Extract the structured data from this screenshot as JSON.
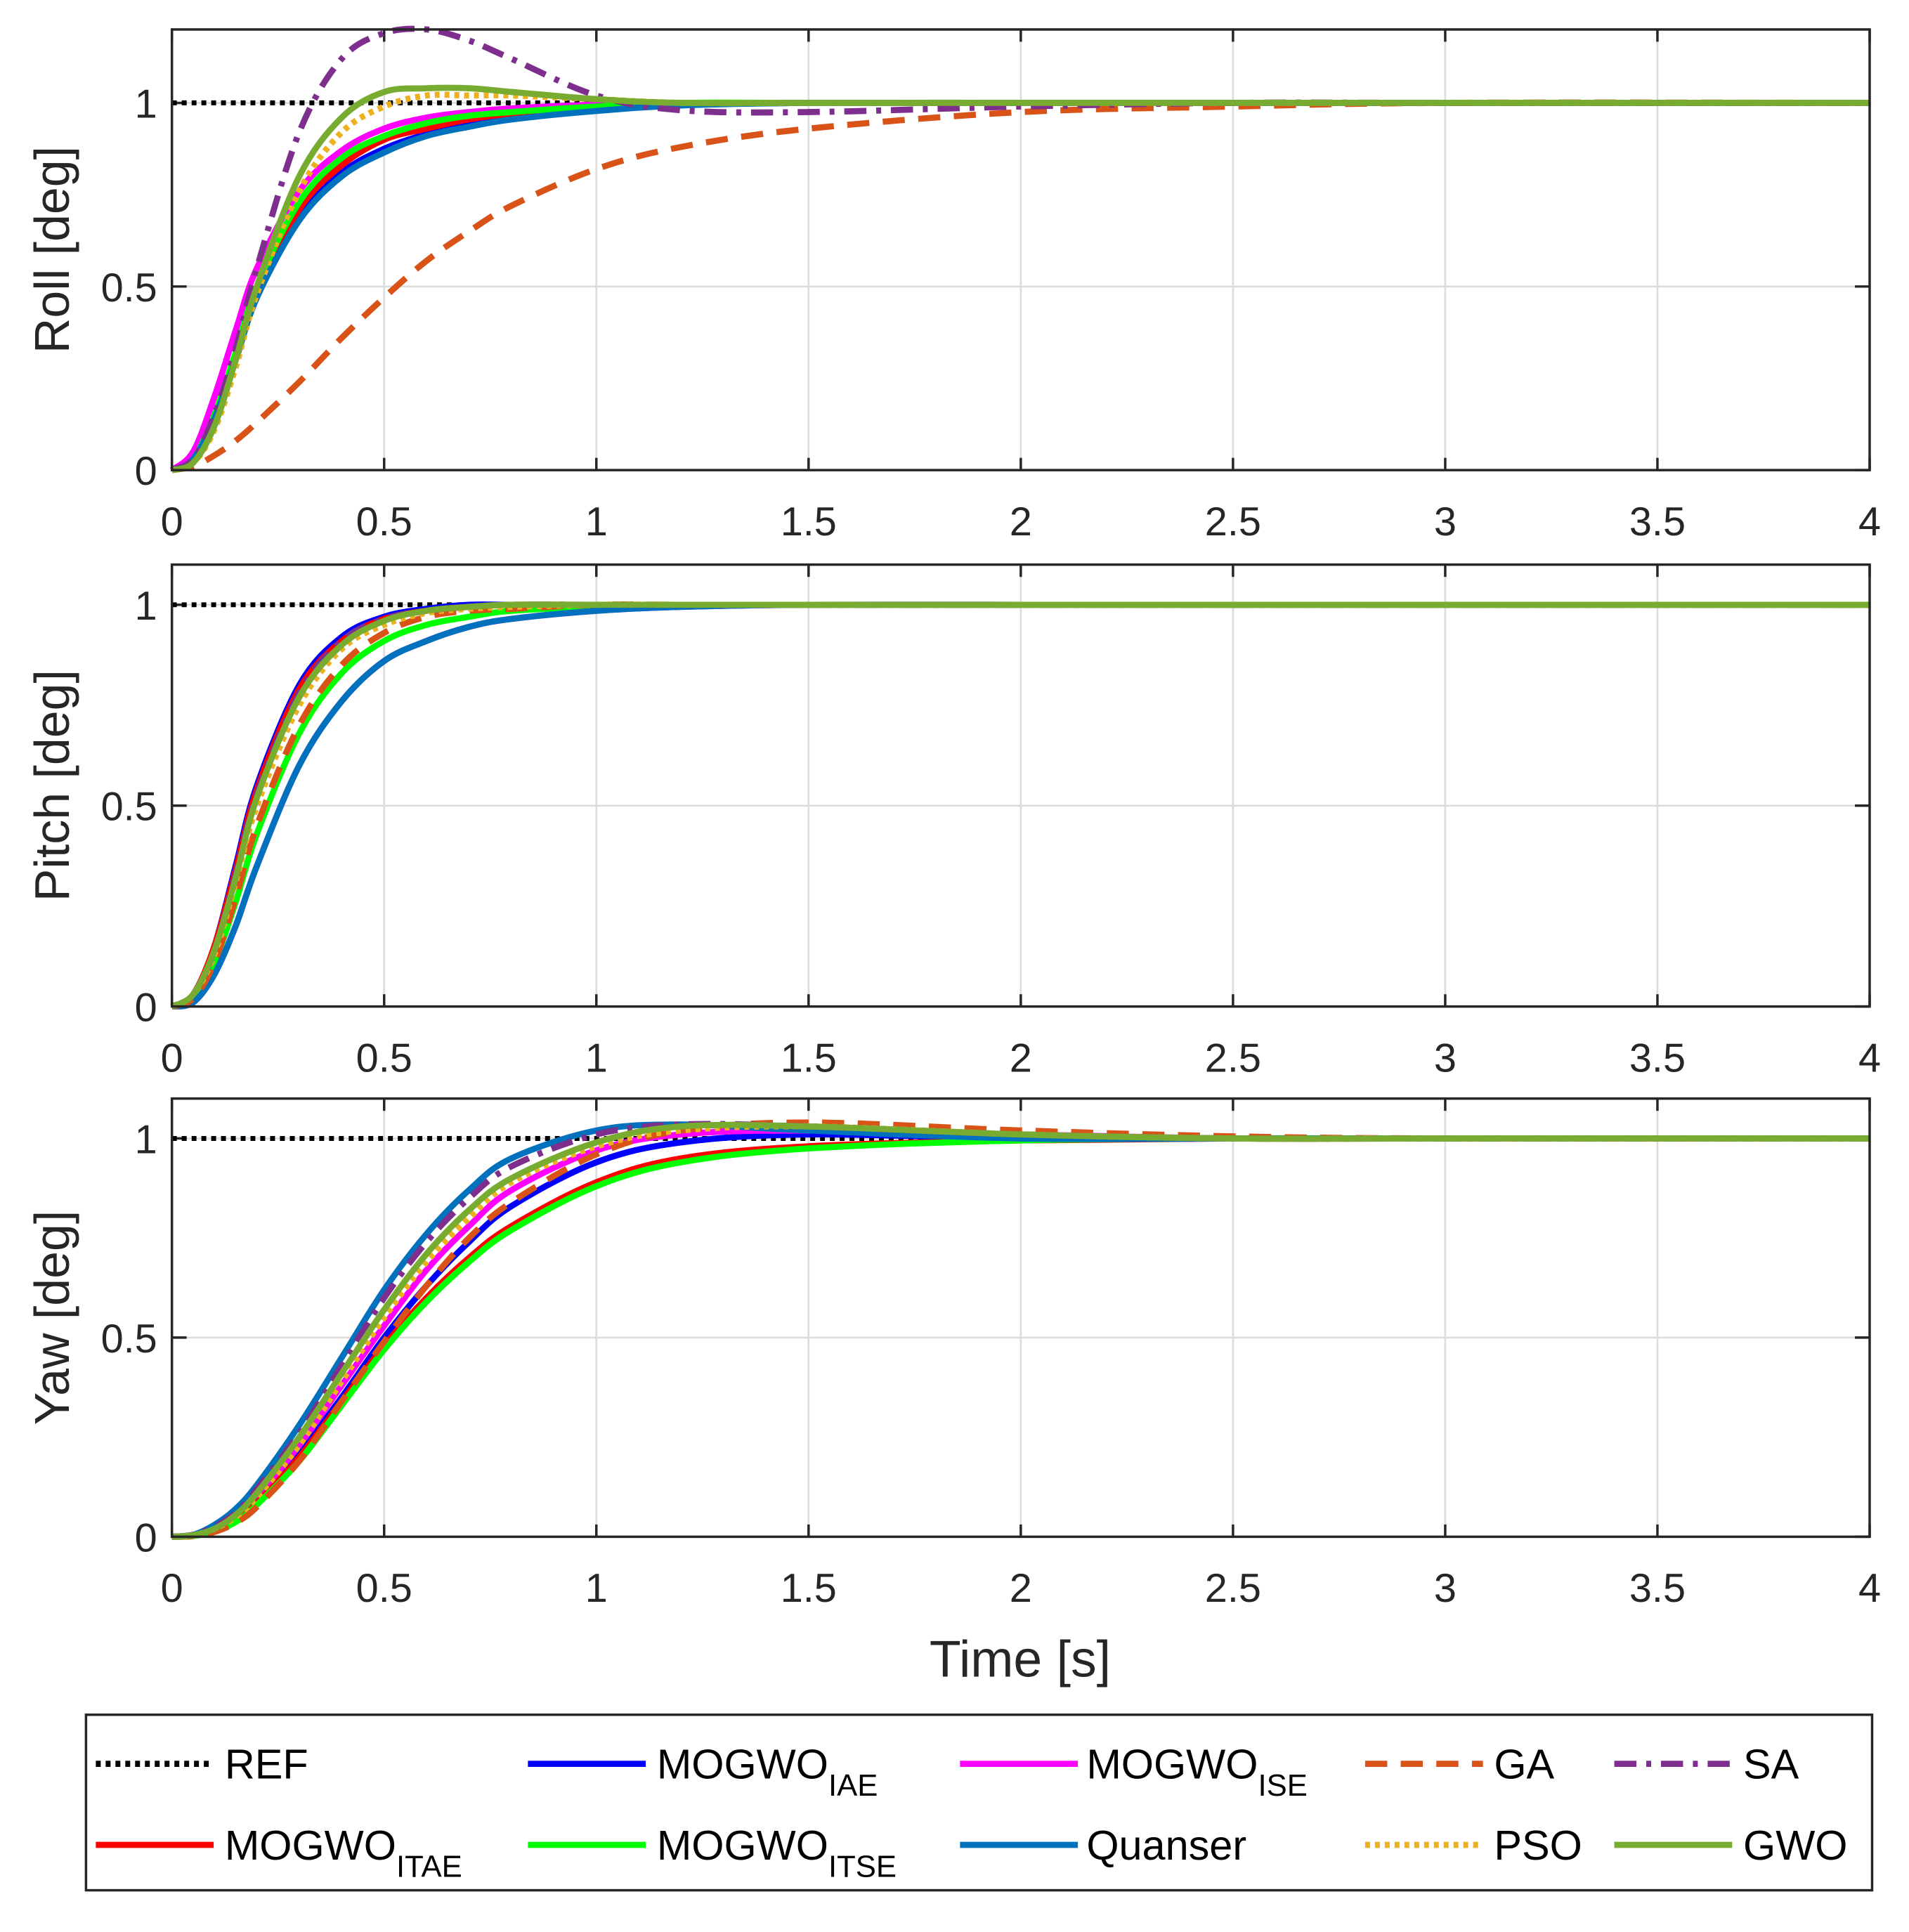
{
  "chart_data": {
    "type": "line",
    "xlabel": "Time [s]",
    "xlim": [
      0,
      4
    ],
    "xticks": [
      "0",
      "0.5",
      "1",
      "1.5",
      "2",
      "2.5",
      "3",
      "3.5",
      "4"
    ],
    "grid": true,
    "legend_placement": "bottom",
    "t": [
      0,
      0.05,
      0.1,
      0.15,
      0.2,
      0.3,
      0.4,
      0.5,
      0.6,
      0.7,
      0.8,
      1.0,
      1.2,
      1.5,
      2,
      2.5,
      3,
      4
    ],
    "series_styles": [
      {
        "key": "REF",
        "label": "REF",
        "sub": "",
        "color": "#000000",
        "style": "dotted"
      },
      {
        "key": "IAE",
        "label": "MOGWO",
        "sub": "IAE",
        "color": "#0000FF",
        "style": "solid"
      },
      {
        "key": "ISE",
        "label": "MOGWO",
        "sub": "ISE",
        "color": "#FF00FF",
        "style": "solid"
      },
      {
        "key": "GA",
        "label": "GA",
        "sub": "",
        "color": "#D95319",
        "style": "dashed"
      },
      {
        "key": "SA",
        "label": "SA",
        "sub": "",
        "color": "#7E2F8E",
        "style": "dashdot"
      },
      {
        "key": "ITAE",
        "label": "MOGWO",
        "sub": "ITAE",
        "color": "#FF0000",
        "style": "solid"
      },
      {
        "key": "ITSE",
        "label": "MOGWO",
        "sub": "ITSE",
        "color": "#00FF00",
        "style": "solid"
      },
      {
        "key": "Quanser",
        "label": "Quanser",
        "sub": "",
        "color": "#0072BD",
        "style": "solid"
      },
      {
        "key": "PSO",
        "label": "PSO",
        "sub": "",
        "color": "#EDB120",
        "style": "dotted"
      },
      {
        "key": "GWO",
        "label": "GWO",
        "sub": "",
        "color": "#77AC30",
        "style": "solid"
      }
    ],
    "panels": [
      {
        "name": "roll",
        "ylabel": "Roll [deg]",
        "ylim": [
          0,
          1.2
        ],
        "yticks": [
          "0",
          "0.5",
          "1"
        ],
        "series": {
          "REF": [
            1,
            1,
            1,
            1,
            1,
            1,
            1,
            1,
            1,
            1,
            1,
            1,
            1,
            1,
            1,
            1,
            1,
            1
          ],
          "IAE": [
            0,
            0.03,
            0.14,
            0.3,
            0.47,
            0.69,
            0.81,
            0.875,
            0.915,
            0.94,
            0.96,
            0.98,
            0.995,
            1,
            1,
            1,
            1,
            1
          ],
          "ISE": [
            0,
            0.05,
            0.2,
            0.38,
            0.55,
            0.76,
            0.87,
            0.93,
            0.96,
            0.975,
            0.985,
            0.995,
            1,
            1,
            1,
            1,
            1,
            1
          ],
          "ITAE": [
            0,
            0.03,
            0.14,
            0.3,
            0.48,
            0.71,
            0.83,
            0.9,
            0.93,
            0.955,
            0.97,
            0.985,
            0.995,
            1,
            1,
            1,
            1,
            1
          ],
          "ITSE": [
            0,
            0.03,
            0.15,
            0.32,
            0.5,
            0.73,
            0.85,
            0.91,
            0.945,
            0.965,
            0.975,
            0.99,
            1,
            1,
            1,
            1,
            1,
            1
          ],
          "Quanser": [
            0,
            0.03,
            0.14,
            0.3,
            0.47,
            0.68,
            0.8,
            0.865,
            0.91,
            0.935,
            0.955,
            0.978,
            0.993,
            1,
            1,
            1,
            1,
            1
          ],
          "GA": [
            0,
            0.01,
            0.04,
            0.08,
            0.13,
            0.24,
            0.36,
            0.47,
            0.57,
            0.65,
            0.72,
            0.82,
            0.88,
            0.93,
            0.975,
            0.99,
            1,
            1
          ],
          "PSO": [
            0,
            0.02,
            0.11,
            0.28,
            0.48,
            0.76,
            0.92,
            0.99,
            1.02,
            1.02,
            1.02,
            1.01,
            1,
            1,
            1,
            1,
            1,
            1
          ],
          "SA": [
            0,
            0.03,
            0.15,
            0.33,
            0.55,
            0.92,
            1.12,
            1.19,
            1.2,
            1.17,
            1.12,
            1.02,
            0.98,
            0.975,
            0.99,
            1,
            1,
            1
          ],
          "GWO": [
            0,
            0.02,
            0.12,
            0.3,
            0.5,
            0.8,
            0.96,
            1.03,
            1.04,
            1.04,
            1.03,
            1.01,
            1,
            1,
            1,
            1,
            1,
            1
          ]
        }
      },
      {
        "name": "pitch",
        "ylabel": "Pitch [deg]",
        "ylim": [
          0,
          1.1
        ],
        "yticks": [
          "0",
          "0.5",
          "1"
        ],
        "series": {
          "REF": [
            1,
            1,
            1,
            1,
            1,
            1,
            1,
            1,
            1,
            1,
            1,
            1,
            1,
            1,
            1,
            1,
            1,
            1
          ],
          "IAE": [
            0,
            0.03,
            0.15,
            0.35,
            0.55,
            0.8,
            0.92,
            0.97,
            0.99,
            1,
            1,
            1,
            1,
            1,
            1,
            1,
            1,
            1
          ],
          "ISE": [
            0,
            0.01,
            0.08,
            0.2,
            0.35,
            0.6,
            0.76,
            0.86,
            0.91,
            0.945,
            0.965,
            0.985,
            0.995,
            1,
            1,
            1,
            1,
            1
          ],
          "ITAE": [
            0,
            0.03,
            0.15,
            0.34,
            0.54,
            0.79,
            0.91,
            0.965,
            0.985,
            0.995,
            1,
            1,
            1,
            1,
            1,
            1,
            1,
            1
          ],
          "ITSE": [
            0,
            0.02,
            0.11,
            0.26,
            0.43,
            0.68,
            0.83,
            0.91,
            0.95,
            0.97,
            0.985,
            0.995,
            1,
            1,
            1,
            1,
            1,
            1
          ],
          "Quanser": [
            0,
            0.01,
            0.08,
            0.2,
            0.35,
            0.6,
            0.76,
            0.86,
            0.91,
            0.945,
            0.965,
            0.985,
            0.995,
            1,
            1,
            1,
            1,
            1
          ],
          "GA": [
            0,
            0.02,
            0.11,
            0.27,
            0.45,
            0.7,
            0.85,
            0.93,
            0.97,
            0.985,
            0.99,
            1,
            1,
            1,
            1,
            1,
            1,
            1
          ],
          "PSO": [
            0,
            0.03,
            0.13,
            0.31,
            0.5,
            0.75,
            0.89,
            0.95,
            0.98,
            0.99,
            0.995,
            1,
            1,
            1,
            1,
            1,
            1,
            1
          ],
          "SA": [
            0,
            0.03,
            0.14,
            0.33,
            0.53,
            0.78,
            0.91,
            0.965,
            0.985,
            0.995,
            1,
            1,
            1,
            1,
            1,
            1,
            1,
            1
          ],
          "GWO": [
            0,
            0.03,
            0.14,
            0.32,
            0.52,
            0.77,
            0.9,
            0.96,
            0.985,
            0.995,
            1,
            1,
            1,
            1,
            1,
            1,
            1,
            1
          ]
        }
      },
      {
        "name": "yaw",
        "ylabel": "Yaw [deg]",
        "ylim": [
          0,
          1.1
        ],
        "yticks": [
          "0",
          "0.5",
          "1"
        ],
        "series": {
          "REF": [
            1,
            1,
            1,
            1,
            1,
            1,
            1,
            1,
            1,
            1,
            1,
            1,
            1,
            1,
            1,
            1,
            1,
            1
          ],
          "IAE": [
            0,
            0.003,
            0.018,
            0.045,
            0.09,
            0.21,
            0.35,
            0.5,
            0.63,
            0.74,
            0.83,
            0.94,
            0.99,
            1.01,
            1,
            1,
            1,
            1
          ],
          "ISE": [
            0,
            0.003,
            0.02,
            0.05,
            0.1,
            0.23,
            0.38,
            0.53,
            0.67,
            0.78,
            0.87,
            0.97,
            1.01,
            1.02,
            1.01,
            1,
            1,
            1
          ],
          "ITAE": [
            0,
            0.003,
            0.016,
            0.04,
            0.085,
            0.2,
            0.34,
            0.48,
            0.6,
            0.7,
            0.78,
            0.89,
            0.95,
            0.98,
            0.995,
            1,
            1,
            1
          ],
          "ITSE": [
            0,
            0.002,
            0.014,
            0.037,
            0.08,
            0.19,
            0.33,
            0.47,
            0.59,
            0.69,
            0.77,
            0.88,
            0.94,
            0.975,
            0.995,
            1,
            1,
            1
          ],
          "Quanser": [
            0,
            0.005,
            0.03,
            0.07,
            0.13,
            0.28,
            0.45,
            0.62,
            0.76,
            0.87,
            0.95,
            1.02,
            1.035,
            1.02,
            1,
            1,
            1,
            1
          ],
          "GA": [
            0,
            0.002,
            0.012,
            0.035,
            0.075,
            0.19,
            0.34,
            0.49,
            0.63,
            0.75,
            0.84,
            0.96,
            1.02,
            1.04,
            1.02,
            1.005,
            1,
            1
          ],
          "PSO": [
            0,
            0.003,
            0.02,
            0.05,
            0.1,
            0.23,
            0.39,
            0.55,
            0.69,
            0.8,
            0.89,
            0.98,
            1.02,
            1.03,
            1.01,
            1,
            1,
            1
          ],
          "SA": [
            0,
            0.005,
            0.025,
            0.06,
            0.12,
            0.26,
            0.43,
            0.6,
            0.74,
            0.85,
            0.93,
            1.01,
            1.035,
            1.03,
            1.01,
            1,
            1,
            1
          ],
          "GWO": [
            0,
            0.004,
            0.02,
            0.055,
            0.11,
            0.25,
            0.41,
            0.57,
            0.71,
            0.82,
            0.9,
            0.99,
            1.03,
            1.03,
            1.01,
            1,
            1,
            1
          ]
        }
      }
    ]
  }
}
